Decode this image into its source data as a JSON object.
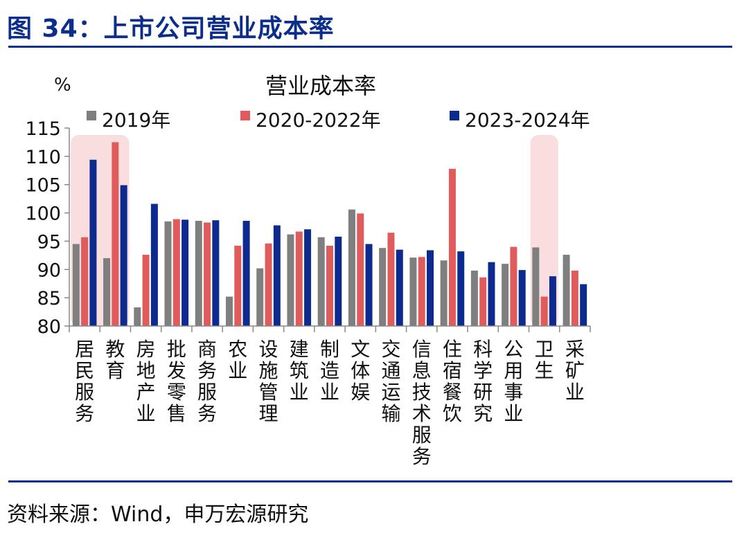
{
  "header": {
    "figure_title": "图 34：上市公司营业成本率"
  },
  "footer": {
    "source": "资料来源：Wind，申万宏源研究"
  },
  "colors": {
    "rule": "#0b2d8c",
    "highlight": "#f8dede"
  },
  "chart_data": {
    "type": "bar",
    "title": "营业成本率",
    "ylabel": "%",
    "ylim": [
      80,
      115
    ],
    "yticks": [
      80,
      85,
      90,
      95,
      100,
      105,
      110,
      115
    ],
    "legend_position": "top",
    "grid": false,
    "categories": [
      "居民服务",
      "教育",
      "房地产业",
      "批发零售",
      "商务服务",
      "农业",
      "设施管理",
      "建筑业",
      "制造业",
      "文体娱",
      "交通运输",
      "信息技术服务",
      "住宿餐饮",
      "科学研究",
      "公用事业",
      "卫生",
      "采矿业"
    ],
    "highlighted_categories": [
      "居民服务",
      "教育",
      "卫生"
    ],
    "series": [
      {
        "name": "2019年",
        "color": "#7f7f7f",
        "values": [
          94.5,
          92.0,
          83.3,
          98.5,
          98.6,
          85.2,
          90.2,
          96.2,
          95.7,
          100.6,
          93.8,
          92.1,
          91.6,
          89.8,
          91.0,
          93.9,
          92.6
        ]
      },
      {
        "name": "2020-2022年",
        "color": "#e05c5c",
        "values": [
          95.7,
          112.5,
          92.6,
          98.9,
          98.3,
          94.2,
          94.6,
          96.7,
          94.2,
          99.9,
          96.5,
          92.2,
          107.8,
          88.6,
          94.0,
          85.2,
          89.8
        ]
      },
      {
        "name": "2023-2024年",
        "color": "#0d2b8e",
        "values": [
          109.4,
          104.9,
          101.6,
          98.8,
          98.7,
          98.6,
          97.8,
          97.1,
          95.8,
          94.5,
          93.5,
          93.4,
          93.2,
          91.3,
          89.9,
          88.8,
          87.4
        ]
      }
    ]
  }
}
